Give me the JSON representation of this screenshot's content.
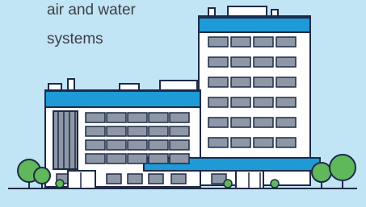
{
  "text": {
    "lines": [
      "air and water",
      "systems"
    ]
  }
}
